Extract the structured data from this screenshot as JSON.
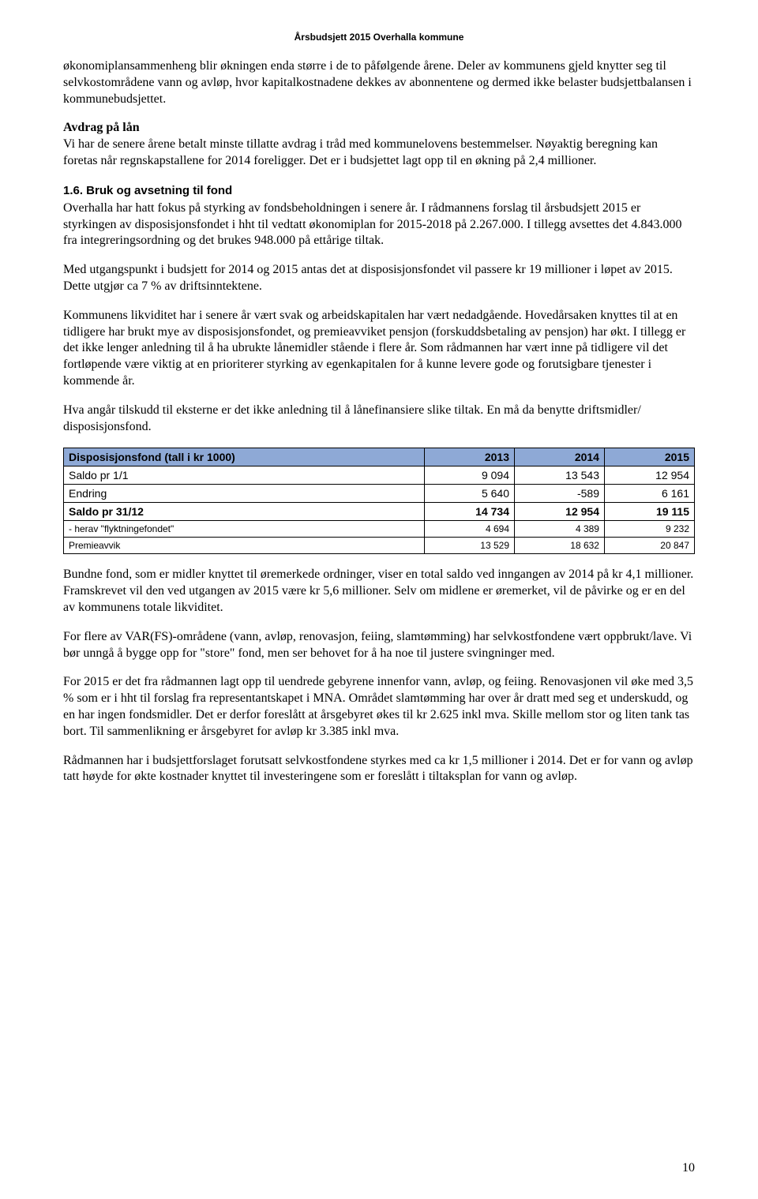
{
  "header": {
    "title": "Årsbudsjett 2015 Overhalla kommune"
  },
  "body": {
    "p1": "økonomiplansammenheng blir økningen enda større i de to påfølgende årene. Deler av kommunens gjeld knytter seg til selvkostområdene vann og avløp, hvor kapitalkostnadene dekkes av abonnentene og dermed ikke belaster budsjettbalansen i kommunebudsjettet.",
    "avdrag_label": "Avdrag på lån",
    "p2": "Vi har de senere årene betalt minste tillatte avdrag i tråd med kommunelovens bestemmelser. Nøyaktig beregning kan foretas når regnskapstallene for 2014 foreligger. Det er i budsjettet lagt opp til en økning på 2,4 millioner.",
    "section_1_6": "1.6.  Bruk og avsetning til fond",
    "p3": "Overhalla har hatt fokus på styrking av fondsbeholdningen i senere år. I rådmannens forslag til årsbudsjett 2015 er styrkingen av disposisjonsfondet i hht til vedtatt økonomiplan for 2015-2018 på 2.267.000. I tillegg avsettes det 4.843.000 fra integreringsordning og det brukes 948.000 på ettårige tiltak.",
    "p4": "Med utgangspunkt i budsjett for 2014 og 2015 antas det at disposisjonsfondet vil passere kr 19 millioner i løpet av 2015. Dette utgjør ca 7 % av driftsinntektene.",
    "p5": "Kommunens likviditet har i senere år vært svak og arbeidskapitalen har vært nedadgående. Hovedårsaken knyttes til at en tidligere har brukt mye av disposisjonsfondet, og premieavviket pensjon (forskuddsbetaling av pensjon) har økt. I tillegg er det ikke lenger anledning til å ha ubrukte lånemidler stående i flere år. Som rådmannen har vært inne på tidligere vil det fortløpende være viktig at en prioriterer styrking av egenkapitalen for å kunne levere gode og forutsigbare tjenester i kommende år.",
    "p6": "Hva angår tilskudd til eksterne er det ikke anledning til å lånefinansiere slike tiltak. En må da benytte driftsmidler/ disposisjonsfond.",
    "p7": "Bundne fond, som er midler knyttet til øremerkede ordninger, viser en total saldo ved inngangen av 2014 på kr 4,1 millioner. Framskrevet vil den ved utgangen av 2015 være kr 5,6 millioner. Selv om midlene er øremerket, vil de påvirke og er en del av kommunens totale likviditet.",
    "p8": "For flere av VAR(FS)-områdene (vann, avløp, renovasjon, feiing, slamtømming) har selvkostfondene vært oppbrukt/lave. Vi bør unngå å bygge opp for \"store\" fond, men ser behovet for å ha noe til justere svingninger med.",
    "p9": "For 2015 er det fra rådmannen lagt opp til uendrede gebyrene innenfor vann, avløp, og feiing. Renovasjonen vil øke med 3,5 % som er i hht til forslag fra representantskapet i MNA. Området slamtømming har over år dratt med seg et underskudd, og en har ingen fondsmidler. Det er derfor foreslått at årsgebyret økes til kr 2.625 inkl mva. Skille mellom stor og liten tank tas bort. Til sammenlikning er årsgebyret for avløp kr 3.385 inkl mva.",
    "p10": "Rådmannen har i budsjettforslaget forutsatt selvkostfondene styrkes med ca kr 1,5 millioner i 2014. Det er for vann og avløp tatt høyde for økte kostnader knyttet til investeringene som er foreslått i tiltaksplan for vann og avløp."
  },
  "table": {
    "header_bg": "#8ea9d6",
    "columns": [
      "Disposisjonsfond (tall i kr 1000)",
      "2013",
      "2014",
      "2015"
    ],
    "rows": [
      {
        "label": "Saldo pr 1/1",
        "v1": "9 094",
        "v2": "13 543",
        "v3": "12 954",
        "bold": false,
        "small": false
      },
      {
        "label": "Endring",
        "v1": "5 640",
        "v2": "-589",
        "v3": "6 161",
        "bold": false,
        "small": false
      },
      {
        "label": "Saldo pr 31/12",
        "v1": "14 734",
        "v2": "12 954",
        "v3": "19 115",
        "bold": true,
        "small": false
      },
      {
        "label": "- herav \"flyktningefondet\"",
        "v1": "4 694",
        "v2": "4 389",
        "v3": "9 232",
        "bold": false,
        "small": true
      },
      {
        "label": "Premieavvik",
        "v1": "13 529",
        "v2": "18 632",
        "v3": "20 847",
        "bold": false,
        "small": true
      }
    ]
  },
  "footer": {
    "page_number": "10"
  }
}
